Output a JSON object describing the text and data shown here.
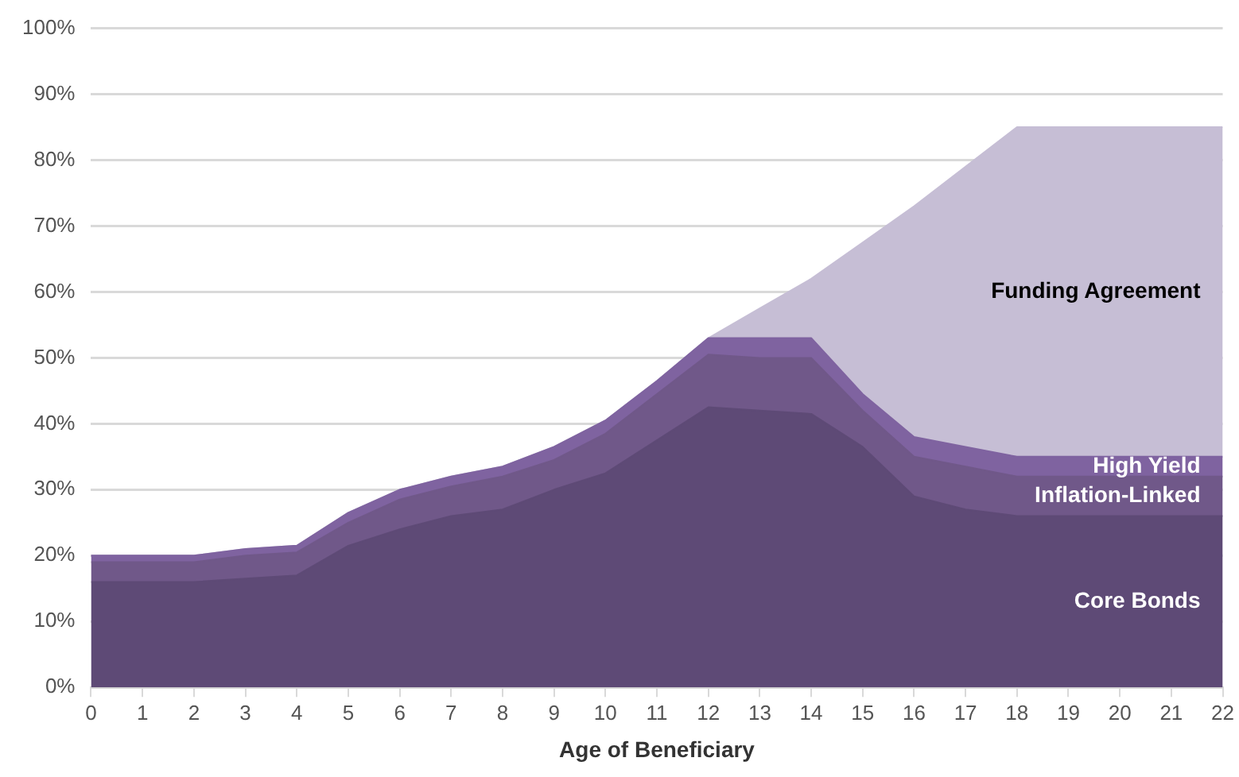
{
  "chart_data": {
    "type": "area",
    "stacked": true,
    "xlabel": "Age of Beneficiary",
    "x": [
      0,
      1,
      2,
      3,
      4,
      5,
      6,
      7,
      8,
      9,
      10,
      11,
      12,
      13,
      14,
      15,
      16,
      17,
      18,
      19,
      20,
      21,
      22
    ],
    "xlim": [
      0,
      22
    ],
    "xticks": [
      0,
      1,
      2,
      3,
      4,
      5,
      6,
      7,
      8,
      9,
      10,
      11,
      12,
      13,
      14,
      15,
      16,
      17,
      18,
      19,
      20,
      21,
      22
    ],
    "ylim": [
      0,
      100
    ],
    "yticks": [
      {
        "value": 0,
        "label": "0%"
      },
      {
        "value": 10,
        "label": "10%"
      },
      {
        "value": 20,
        "label": "20%"
      },
      {
        "value": 30,
        "label": "30%"
      },
      {
        "value": 40,
        "label": "40%"
      },
      {
        "value": 50,
        "label": "50%"
      },
      {
        "value": 60,
        "label": "60%"
      },
      {
        "value": 70,
        "label": "70%"
      },
      {
        "value": 80,
        "label": "80%"
      },
      {
        "value": 90,
        "label": "90%"
      },
      {
        "value": 100,
        "label": "100%"
      }
    ],
    "grid": "y",
    "legend": false,
    "series": [
      {
        "name": "Core Bonds",
        "color": "#5e4a76",
        "values": [
          16,
          16,
          16,
          16.5,
          17,
          21.5,
          24,
          26,
          27,
          30,
          32.5,
          37.5,
          42.5,
          42,
          41.5,
          36.5,
          29,
          27,
          26,
          26,
          26,
          26,
          26
        ]
      },
      {
        "name": "Inflation-Linked",
        "color": "#705889",
        "values": [
          3,
          3,
          3,
          3.5,
          3.5,
          3.5,
          4.5,
          4.5,
          5,
          4.5,
          6,
          7,
          8,
          8,
          8.5,
          5.5,
          6,
          6.5,
          6,
          6,
          6,
          6,
          6
        ]
      },
      {
        "name": "High Yield",
        "color": "#7f63a0",
        "values": [
          1,
          1,
          1,
          1,
          1,
          1.5,
          1.5,
          1.5,
          1.5,
          2,
          2,
          2,
          2.5,
          3,
          3,
          2.5,
          3,
          3,
          3,
          3,
          3,
          3,
          3
        ]
      },
      {
        "name": "Funding Agreement",
        "color": "#c6bed5",
        "values": [
          0,
          0,
          0,
          0,
          0,
          0,
          0,
          0,
          0,
          0,
          0,
          0,
          0,
          4.5,
          9,
          23,
          35,
          42.5,
          50,
          50,
          50,
          50,
          50
        ]
      }
    ]
  }
}
